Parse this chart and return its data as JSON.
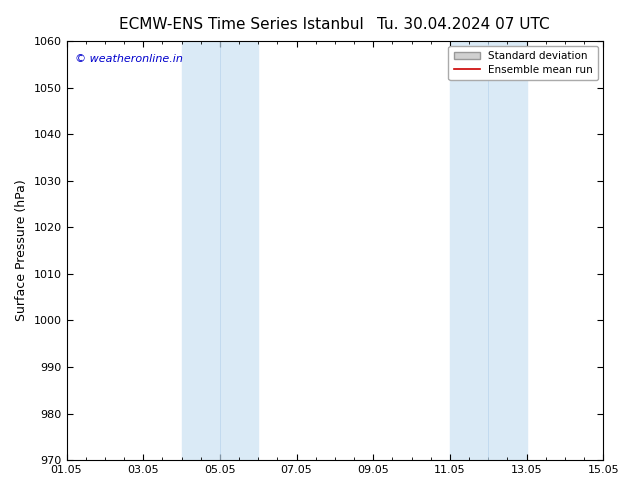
{
  "title": "ECMW-ENS Time Series Istanbul",
  "title2": "Tu. 30.04.2024 07 UTC",
  "ylabel": "Surface Pressure (hPa)",
  "xlabel": "",
  "ylim": [
    970,
    1060
  ],
  "yticks": [
    970,
    980,
    990,
    1000,
    1010,
    1020,
    1030,
    1040,
    1050,
    1060
  ],
  "xtick_labels": [
    "01.05",
    "03.05",
    "05.05",
    "07.05",
    "09.05",
    "11.05",
    "13.05",
    "15.05"
  ],
  "xtick_positions": [
    0,
    2,
    4,
    6,
    8,
    10,
    12,
    14
  ],
  "xlim": [
    0,
    14
  ],
  "shaded_bands": [
    {
      "x_start": 3.5,
      "x_end": 4.5,
      "color": "#daeaf8"
    },
    {
      "x_start": 4.5,
      "x_end": 5.5,
      "color": "#daeaf8"
    },
    {
      "x_start": 10.5,
      "x_end": 11.5,
      "color": "#daeaf8"
    },
    {
      "x_start": 11.5,
      "x_end": 12.5,
      "color": "#daeaf8"
    }
  ],
  "watermark_text": "© weatheronline.in",
  "watermark_color": "#0000cc",
  "watermark_fontsize": 8,
  "legend_std_label": "Standard deviation",
  "legend_mean_label": "Ensemble mean run",
  "legend_std_facecolor": "#d0d0d0",
  "legend_std_edgecolor": "#999999",
  "legend_mean_color": "#cc0000",
  "bg_color": "#ffffff",
  "plot_bg_color": "#ffffff",
  "title_fontsize": 11,
  "tick_fontsize": 8,
  "ylabel_fontsize": 9
}
